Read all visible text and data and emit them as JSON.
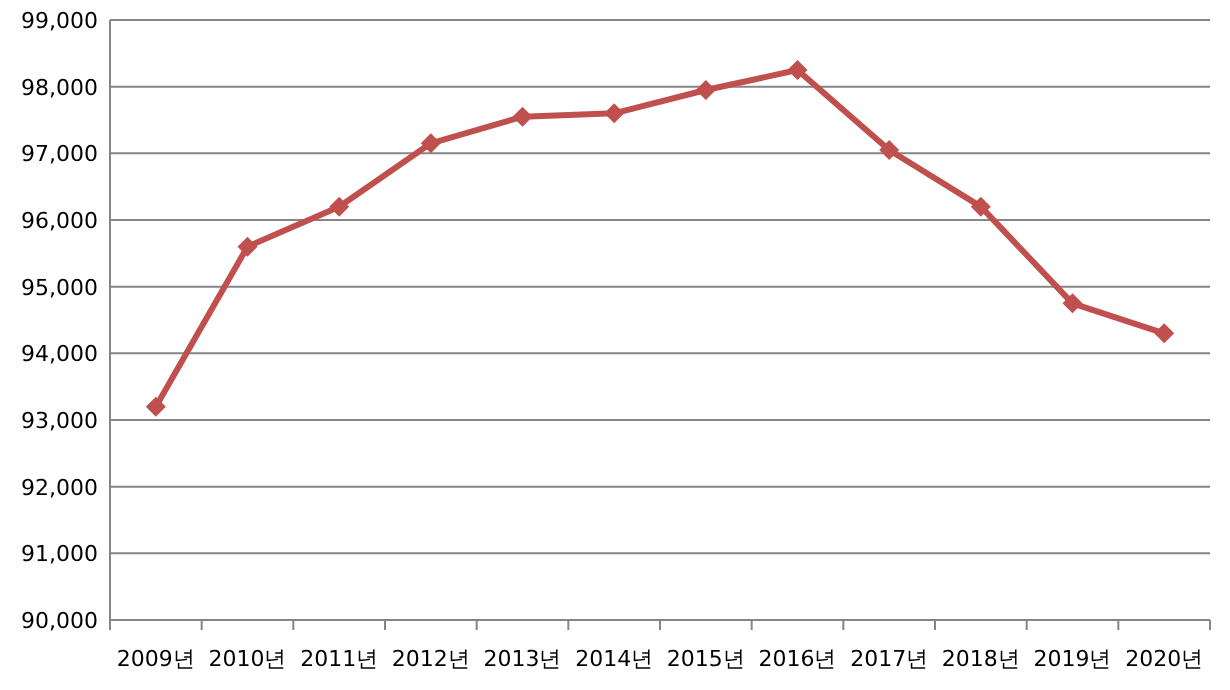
{
  "chart_data": {
    "type": "line",
    "categories": [
      "2009년",
      "2010년",
      "2011년",
      "2012년",
      "2013년",
      "2014년",
      "2015년",
      "2016년",
      "2017년",
      "2018년",
      "2019년",
      "2020년"
    ],
    "series": [
      {
        "color": "#c0504d",
        "values": [
          93200,
          95600,
          96200,
          97150,
          97550,
          97600,
          97950,
          98250,
          97050,
          96200,
          94750,
          94300
        ]
      }
    ],
    "ylim": [
      90000,
      99000
    ],
    "yticks": [
      {
        "value": 90000,
        "label": "90,000"
      },
      {
        "value": 91000,
        "label": "91,000"
      },
      {
        "value": 92000,
        "label": "92,000"
      },
      {
        "value": 93000,
        "label": "93,000"
      },
      {
        "value": 94000,
        "label": "94,000"
      },
      {
        "value": 95000,
        "label": "95,000"
      },
      {
        "value": 96000,
        "label": "96,000"
      },
      {
        "value": 97000,
        "label": "97,000"
      },
      {
        "value": 98000,
        "label": "98,000"
      },
      {
        "value": 99000,
        "label": "99,000"
      }
    ],
    "grid": "y",
    "marker": "diamond",
    "line_style": "solid"
  }
}
